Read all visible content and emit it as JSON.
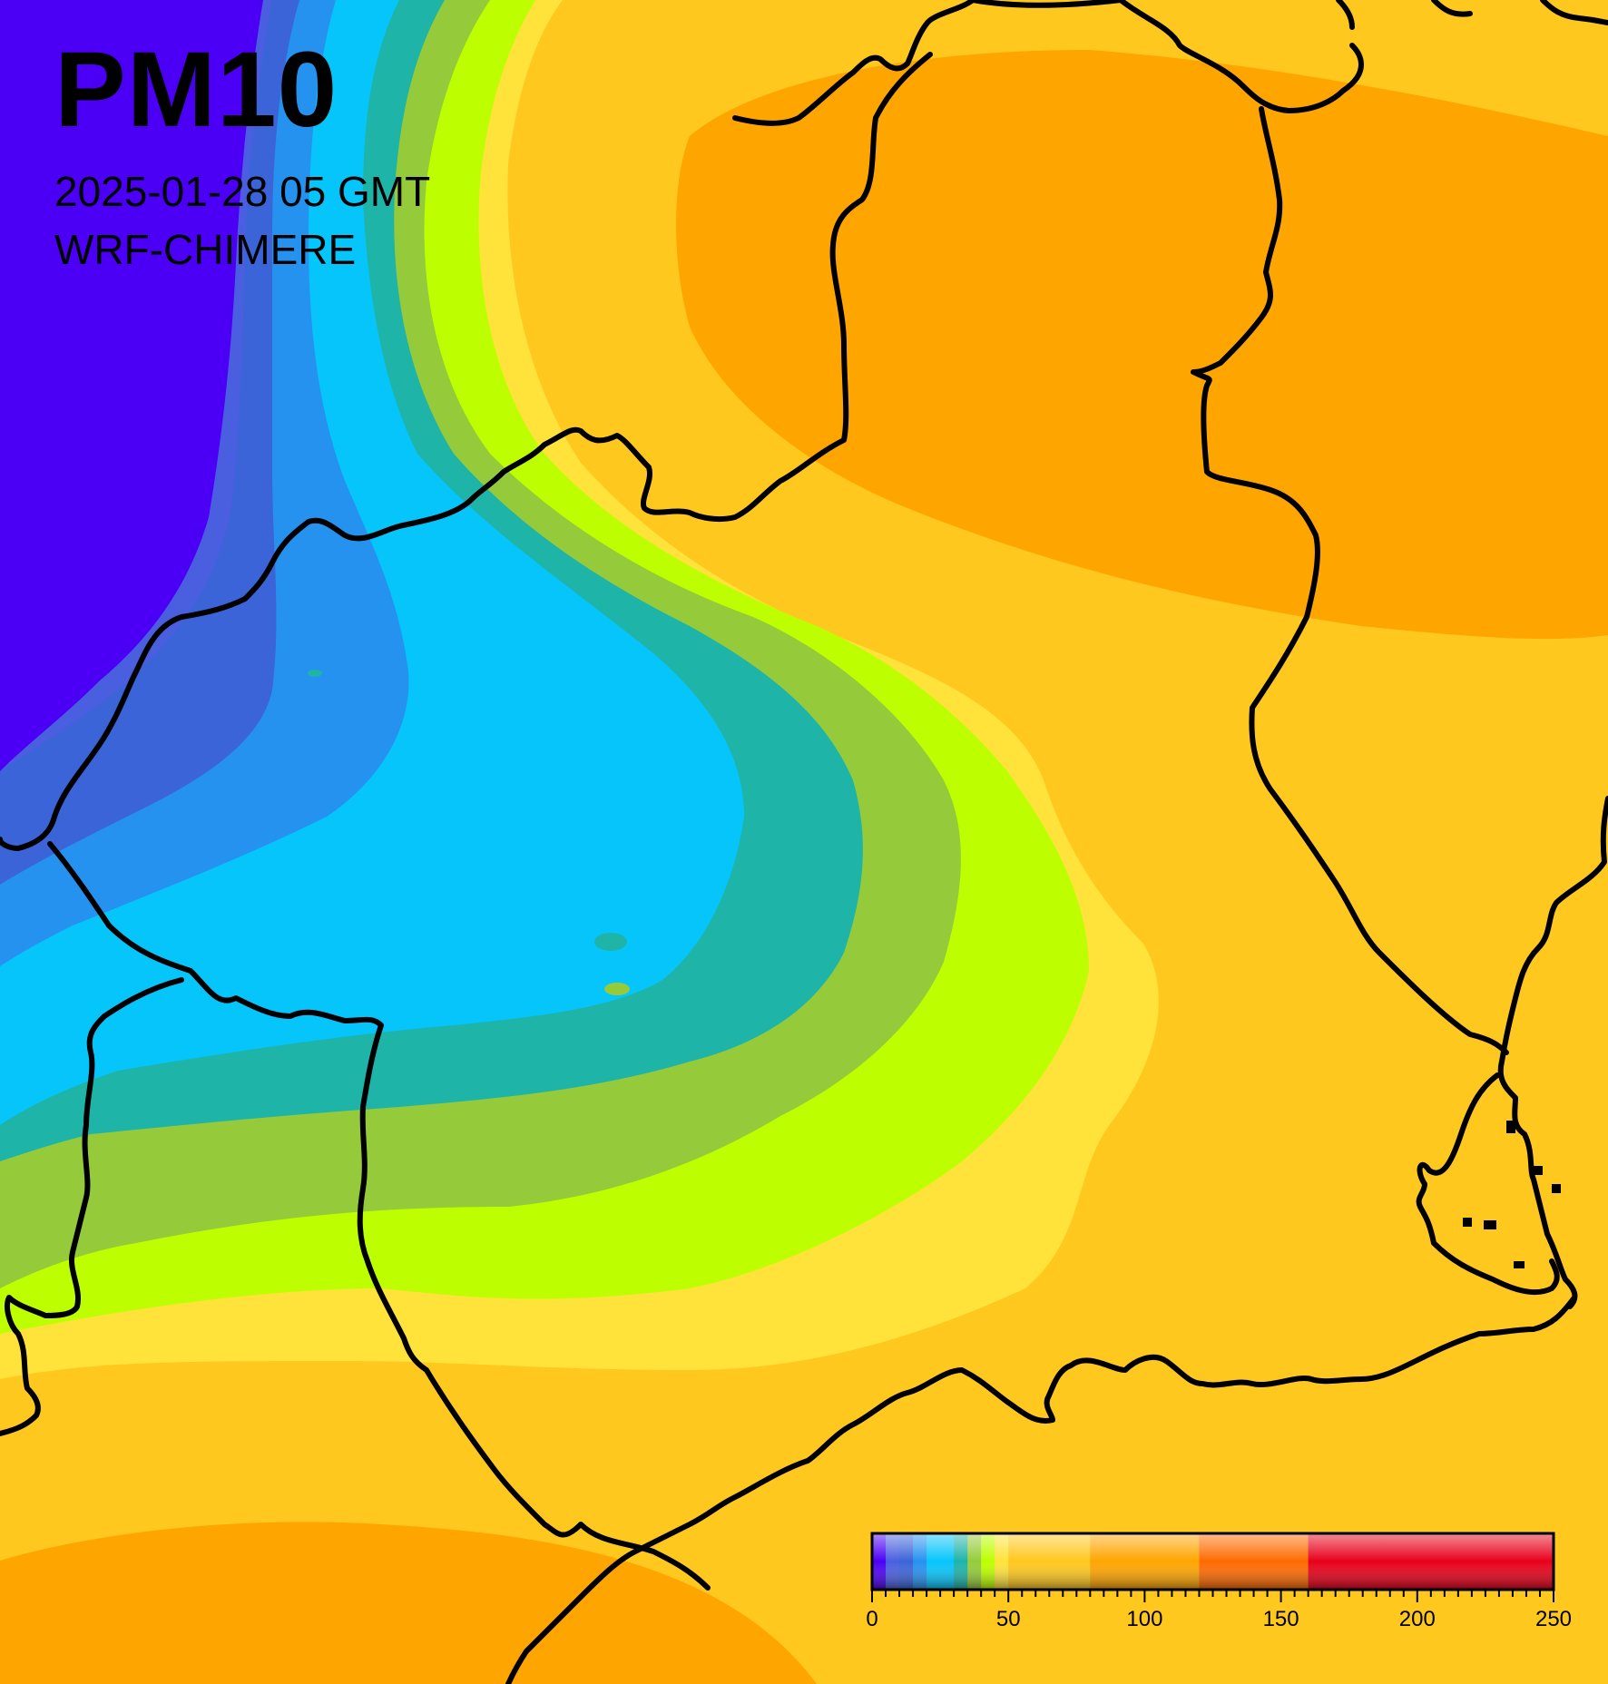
{
  "title": "PM10",
  "timestamp": "2025-01-28 05 GMT",
  "model": "WRF-CHIMERE",
  "colorbar": {
    "min": 0,
    "max": 250,
    "tick_labels": [
      "0",
      "50",
      "100",
      "150",
      "200",
      "250"
    ],
    "bands": [
      {
        "from": 0,
        "to": 5,
        "color": "#4b00f5"
      },
      {
        "from": 5,
        "to": 10,
        "color": "#4a5ee0"
      },
      {
        "from": 10,
        "to": 15,
        "color": "#3a64d8"
      },
      {
        "from": 15,
        "to": 20,
        "color": "#2592f0"
      },
      {
        "from": 20,
        "to": 30,
        "color": "#06c5fb"
      },
      {
        "from": 30,
        "to": 35,
        "color": "#1eb4a8"
      },
      {
        "from": 35,
        "to": 40,
        "color": "#95cb3a"
      },
      {
        "from": 40,
        "to": 45,
        "color": "#bdff00"
      },
      {
        "from": 45,
        "to": 50,
        "color": "#ffe23a"
      },
      {
        "from": 50,
        "to": 80,
        "color": "#ffc81e"
      },
      {
        "from": 80,
        "to": 120,
        "color": "#ffa500"
      },
      {
        "from": 120,
        "to": 160,
        "color": "#ff6a00"
      },
      {
        "from": 160,
        "to": 250,
        "color": "#e8001a"
      }
    ]
  }
}
